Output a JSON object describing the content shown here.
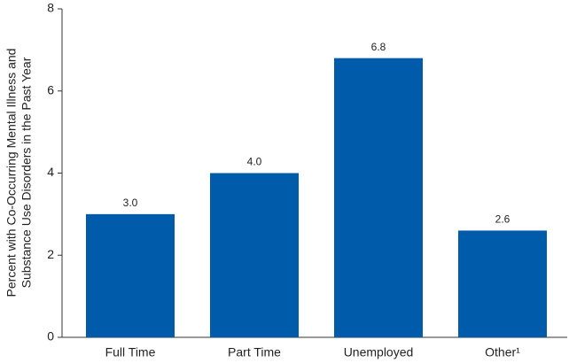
{
  "chart_data": {
    "type": "bar",
    "y_label": [
      "Percent with Co-Occurring Mental Illness and",
      "Substance Use Disorders in the Past Year"
    ],
    "categories": [
      "Full Time",
      "Part Time",
      "Unemployed",
      "Other¹"
    ],
    "values": [
      3.0,
      4.0,
      6.8,
      2.6
    ],
    "value_labels": [
      "3.0",
      "4.0",
      "6.8",
      "2.6"
    ],
    "color": "#005bab",
    "ylim": [
      0,
      8
    ],
    "yticks": [
      0,
      2,
      4,
      6,
      8
    ],
    "grid": false
  }
}
